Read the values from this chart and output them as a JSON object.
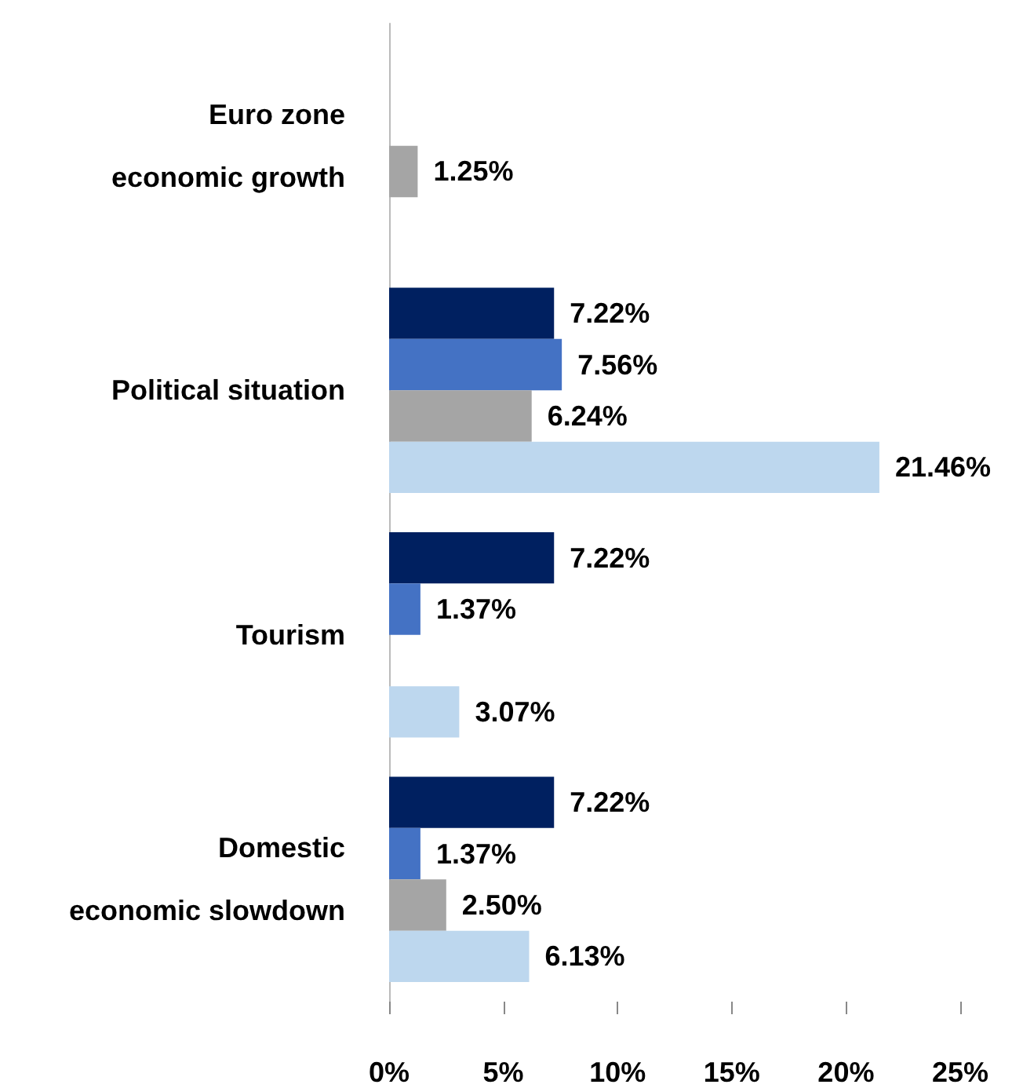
{
  "chart_data": {
    "type": "bar",
    "orientation": "horizontal",
    "categories": [
      "Euro zone\neconomic growth",
      "Political situation",
      "Tourism",
      "Domestic\neconomic slowdown"
    ],
    "series": [
      {
        "color": "#002060",
        "values": [
          null,
          7.22,
          7.22,
          7.22
        ],
        "value_labels": [
          null,
          "7.22%",
          "7.22%",
          "7.22%"
        ]
      },
      {
        "color": "#4472c4",
        "values": [
          null,
          7.56,
          1.37,
          1.37
        ],
        "value_labels": [
          null,
          "7.56%",
          "1.37%",
          "1.37%"
        ]
      },
      {
        "color": "#a5a5a5",
        "values": [
          1.25,
          6.24,
          null,
          2.5
        ],
        "value_labels": [
          "1.25%",
          "6.24%",
          null,
          "2.50%"
        ]
      },
      {
        "color": "#bdd7ee",
        "values": [
          null,
          21.46,
          3.07,
          6.13
        ],
        "value_labels": [
          null,
          "21.46%",
          "3.07%",
          "6.13%"
        ]
      }
    ],
    "xlim": [
      0,
      25
    ],
    "xticks": [
      {
        "value": 0,
        "label": "0%"
      },
      {
        "value": 5,
        "label": "5%"
      },
      {
        "value": 10,
        "label": "10%"
      },
      {
        "value": 15,
        "label": "15%"
      },
      {
        "value": 20,
        "label": "20%"
      },
      {
        "value": 25,
        "label": "25%"
      }
    ],
    "grid": false
  }
}
